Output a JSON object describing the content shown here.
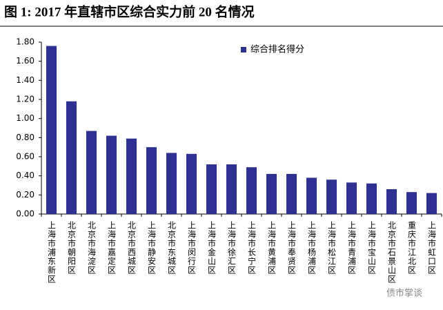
{
  "chart_data": {
    "type": "bar",
    "title": "图 1:  2017 年直辖市区综合实力前 20 名情况",
    "categories": [
      "上海市浦东新区",
      "北京市朝阳区",
      "北京市海淀区",
      "上海市嘉定区",
      "北京市西城区",
      "上海市静安区",
      "北京市东城区",
      "上海市闵行区",
      "上海市金山区",
      "上海市徐汇区",
      "上海市长宁区",
      "上海市黄浦区",
      "上海市奉贤区",
      "上海市杨浦区",
      "上海市松江区",
      "上海市青浦区",
      "上海市宝山区",
      "北京市石景山区",
      "重庆市江北区",
      "上海市虹口区"
    ],
    "series": [
      {
        "name": "综合排名得分",
        "color": "#2e3192",
        "values": [
          1.76,
          1.18,
          0.87,
          0.82,
          0.79,
          0.7,
          0.64,
          0.63,
          0.52,
          0.52,
          0.49,
          0.42,
          0.42,
          0.38,
          0.36,
          0.33,
          0.32,
          0.26,
          0.23,
          0.22
        ]
      }
    ],
    "ylim": [
      0,
      1.8
    ],
    "yticks": [
      {
        "value": 0,
        "label": "0.00"
      },
      {
        "value": 0.2,
        "label": "0.20"
      },
      {
        "value": 0.4,
        "label": "0.40"
      },
      {
        "value": 0.6,
        "label": "0.60"
      },
      {
        "value": 0.8,
        "label": "0.80"
      },
      {
        "value": 1,
        "label": "1.00"
      },
      {
        "value": 1.2,
        "label": "1.20"
      },
      {
        "value": 1.4,
        "label": "1.40"
      },
      {
        "value": 1.6,
        "label": "1.60"
      },
      {
        "value": 1.8,
        "label": "1.80"
      }
    ],
    "grid": false,
    "legend": "top",
    "watermark": "债市掌谈"
  }
}
